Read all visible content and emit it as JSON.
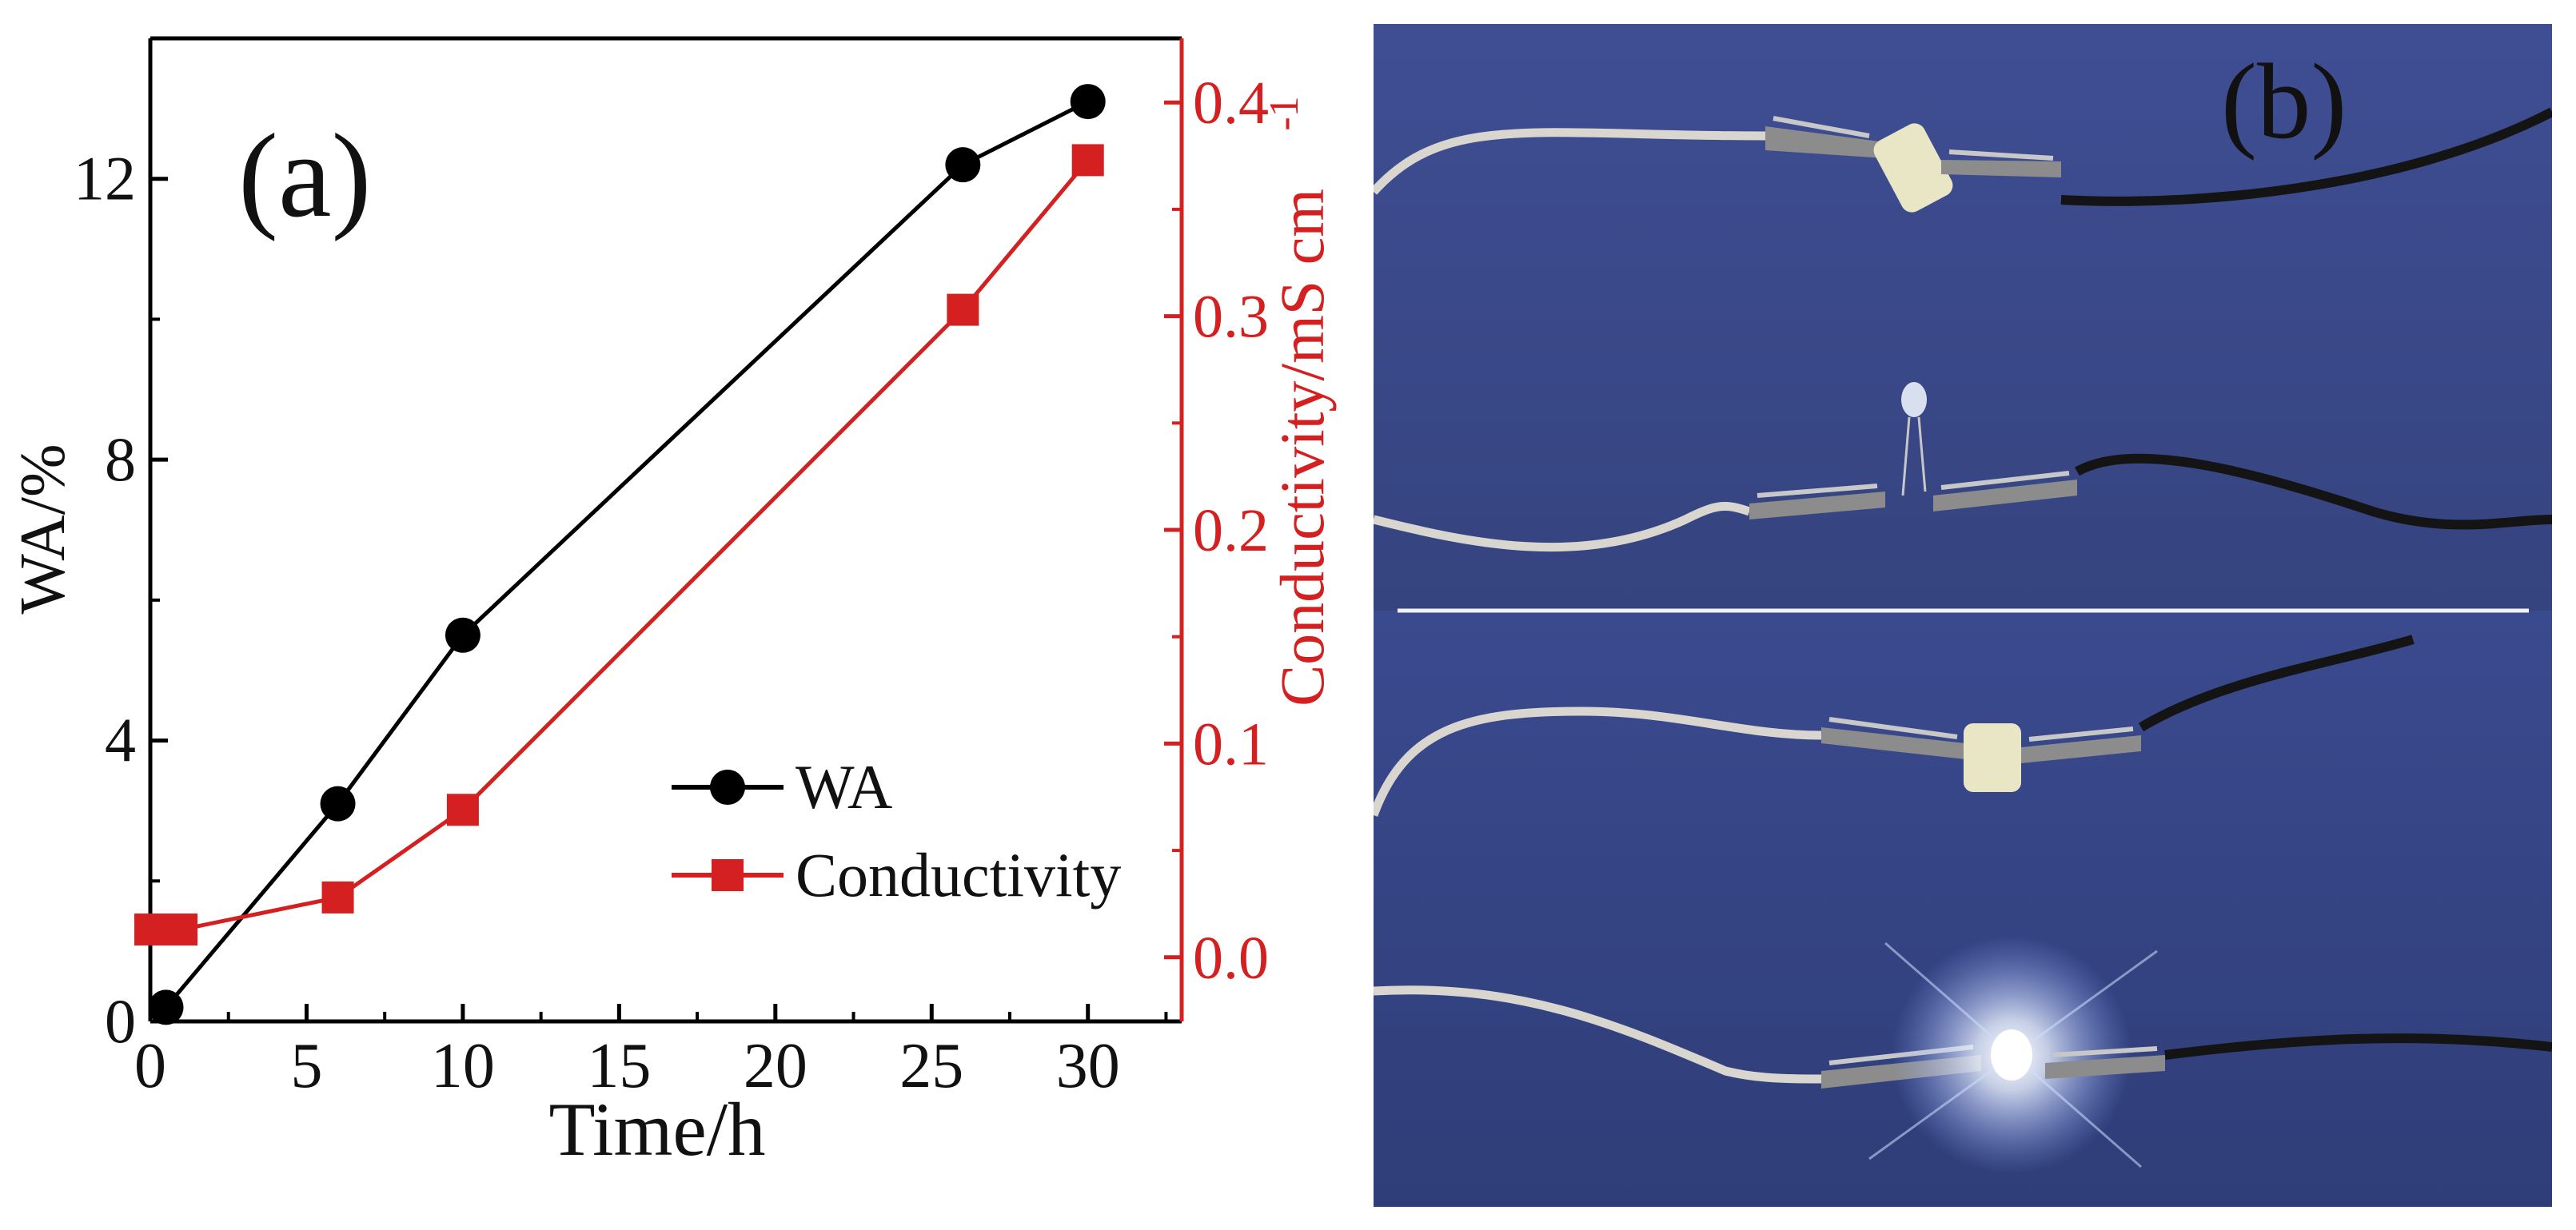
{
  "chart_data": {
    "type": "line",
    "panel_label": "(a)",
    "xlabel": "Time/h",
    "ylabel_left": "WA/%",
    "ylabel_right": "Conductivity/mS cm",
    "ylabel_right_superscript": "-1",
    "xlim": [
      0,
      33
    ],
    "ylim_left": [
      0,
      14
    ],
    "ylim_right": [
      -0.03,
      0.43
    ],
    "xticks": [
      0,
      5,
      10,
      15,
      20,
      25,
      30
    ],
    "yticks_left": [
      0,
      4,
      8,
      12
    ],
    "yticks_right": [
      0.0,
      0.1,
      0.2,
      0.3,
      0.4
    ],
    "ytick_labels_right": [
      "0.0",
      "0.1",
      "0.2",
      "0.3",
      "0.4"
    ],
    "grid": false,
    "legend_position": "bottom-right",
    "colors": {
      "wa": "#000000",
      "conductivity": "#d42020",
      "right_axis": "#d42020"
    },
    "series": [
      {
        "name": "WA",
        "axis": "left",
        "marker": "circle",
        "x": [
          0.5,
          6,
          10,
          26,
          30
        ],
        "y": [
          0.2,
          3.1,
          5.5,
          12.2,
          13.1
        ]
      },
      {
        "name": "Conductivity",
        "axis": "right",
        "marker": "square",
        "x": [
          0,
          1,
          6,
          10,
          26,
          30
        ],
        "y": [
          0.013,
          0.013,
          0.028,
          0.069,
          0.303,
          0.373
        ]
      }
    ]
  },
  "photo_panel": {
    "label": "(b)",
    "description_icons": [
      "alligator-clip-icon",
      "led-icon",
      "hydrogel-cube-icon",
      "cable-icon"
    ]
  }
}
